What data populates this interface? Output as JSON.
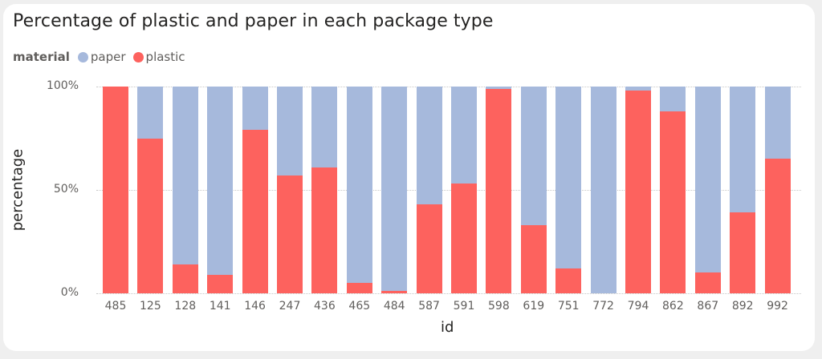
{
  "chart_data": {
    "type": "bar",
    "stacked": true,
    "title": "Percentage of plastic and paper in each package type",
    "xlabel": "id",
    "ylabel": "percentage",
    "ylim": [
      0,
      100
    ],
    "yticks": [
      "0%",
      "50%",
      "100%"
    ],
    "legend": {
      "title": "material",
      "position": "top-left",
      "entries": [
        "paper",
        "plastic"
      ]
    },
    "grid": true,
    "categories": [
      "485",
      "125",
      "128",
      "141",
      "146",
      "247",
      "436",
      "465",
      "484",
      "587",
      "591",
      "598",
      "619",
      "751",
      "772",
      "794",
      "862",
      "867",
      "892",
      "992"
    ],
    "series": [
      {
        "name": "plastic",
        "color": "#fd625e",
        "values": [
          100,
          75,
          14,
          9,
          79,
          57,
          61,
          5,
          1,
          43,
          53,
          99,
          33,
          12,
          0,
          98,
          88,
          10,
          39,
          65
        ]
      },
      {
        "name": "paper",
        "color": "#a6b9dc",
        "values": [
          0,
          25,
          86,
          91,
          21,
          43,
          39,
          95,
          99,
          57,
          47,
          1,
          67,
          88,
          100,
          2,
          12,
          90,
          61,
          35
        ]
      }
    ]
  },
  "legend": {
    "title": "material",
    "items": [
      {
        "label": "paper",
        "color": "#a6b9dc"
      },
      {
        "label": "plastic",
        "color": "#fd625e"
      }
    ]
  },
  "axes": {
    "y_ticks": [
      {
        "label": "100%",
        "value": 100
      },
      {
        "label": "50%",
        "value": 50
      },
      {
        "label": "0%",
        "value": 0
      }
    ]
  }
}
